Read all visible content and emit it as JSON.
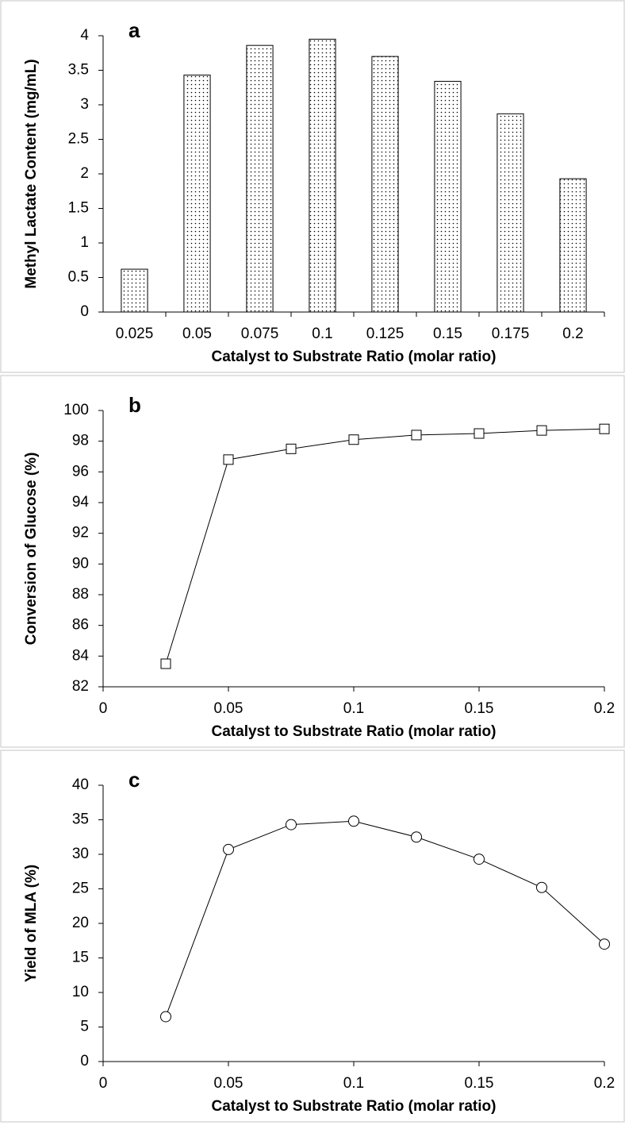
{
  "chart_data": [
    {
      "type": "bar",
      "title": "a",
      "xlabel": "Catalyst to Substrate Ratio (molar ratio)",
      "ylabel": "Methyl Lactate Content (mg/mL)",
      "categories": [
        "0.025",
        "0.05",
        "0.075",
        "0.1",
        "0.125",
        "0.15",
        "0.175",
        "0.2"
      ],
      "values": [
        0.62,
        3.43,
        3.86,
        3.95,
        3.7,
        3.34,
        2.87,
        1.93
      ],
      "ylim": [
        0,
        4
      ],
      "yticks": [
        0,
        0.5,
        1,
        1.5,
        2,
        2.5,
        3,
        3.5,
        4
      ],
      "pattern": "dots"
    },
    {
      "type": "line",
      "title": "b",
      "xlabel": "Catalyst to Substrate Ratio (molar ratio)",
      "ylabel": "Conversion of Glucose (%)",
      "x": [
        0.025,
        0.05,
        0.075,
        0.1,
        0.125,
        0.15,
        0.175,
        0.2
      ],
      "values": [
        83.5,
        96.8,
        97.5,
        98.1,
        98.4,
        98.5,
        98.7,
        98.8
      ],
      "xlim": [
        0,
        0.2
      ],
      "xticks": [
        0,
        0.05,
        0.1,
        0.15,
        0.2
      ],
      "ylim": [
        82,
        100
      ],
      "yticks": [
        82,
        84,
        86,
        88,
        90,
        92,
        94,
        96,
        98,
        100
      ],
      "marker": "square"
    },
    {
      "type": "line",
      "title": "c",
      "xlabel": "Catalyst to Substrate Ratio (molar ratio)",
      "ylabel": "Yield of MLA (%)",
      "x": [
        0.025,
        0.05,
        0.075,
        0.1,
        0.125,
        0.15,
        0.175,
        0.2
      ],
      "values": [
        6.5,
        30.7,
        34.3,
        34.8,
        32.5,
        29.3,
        25.2,
        17.0
      ],
      "xlim": [
        0,
        0.2
      ],
      "xticks": [
        0,
        0.05,
        0.1,
        0.15,
        0.2
      ],
      "ylim": [
        0,
        40
      ],
      "yticks": [
        0,
        5,
        10,
        15,
        20,
        25,
        30,
        35,
        40
      ],
      "marker": "circle"
    }
  ]
}
